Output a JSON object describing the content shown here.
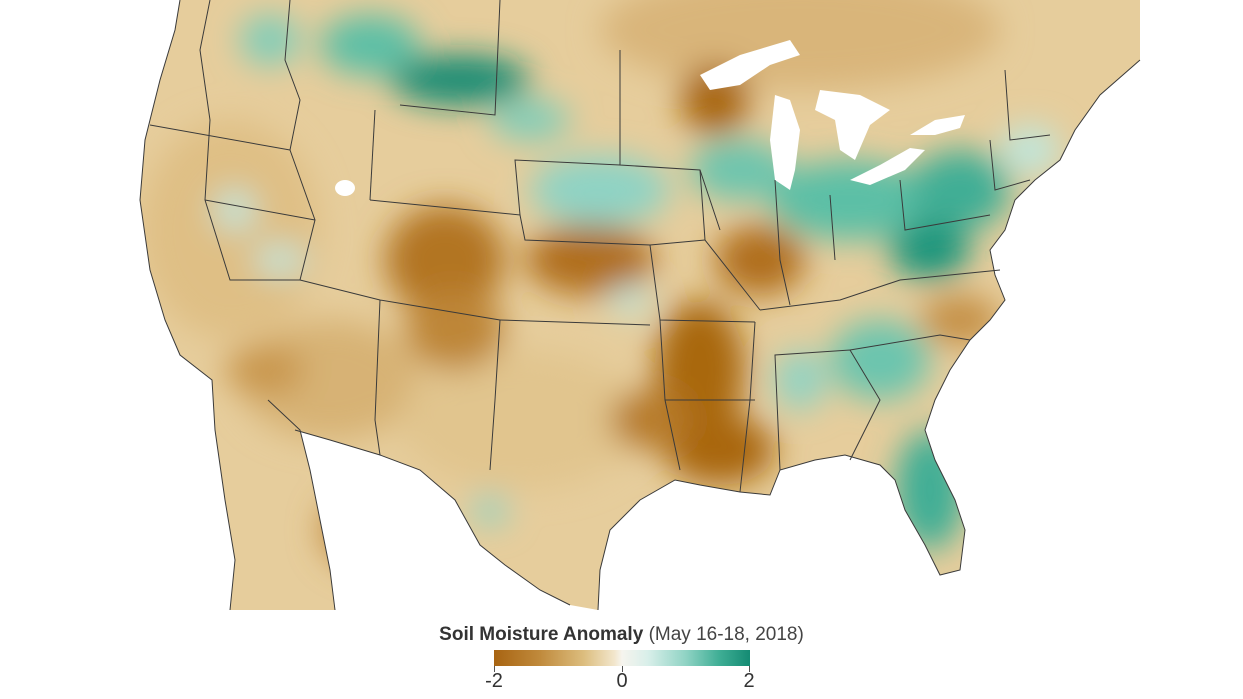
{
  "map": {
    "region": "contiguous-united-states",
    "colors": {
      "dry_strong": "#a86412",
      "dry": "#c9974e",
      "dry_light": "#e4cc98",
      "neutral": "#f6f4ee",
      "wet_light": "#bfe6dc",
      "wet": "#5cbfa6",
      "wet_strong": "#148b73",
      "water": "#ffffff",
      "border": "#3a3a3a"
    }
  },
  "legend": {
    "title_bold": "Soil Moisture Anomaly",
    "title_rest": "(May 16-18, 2018)",
    "min_label": "-2",
    "mid_label": "0",
    "max_label": "2"
  }
}
